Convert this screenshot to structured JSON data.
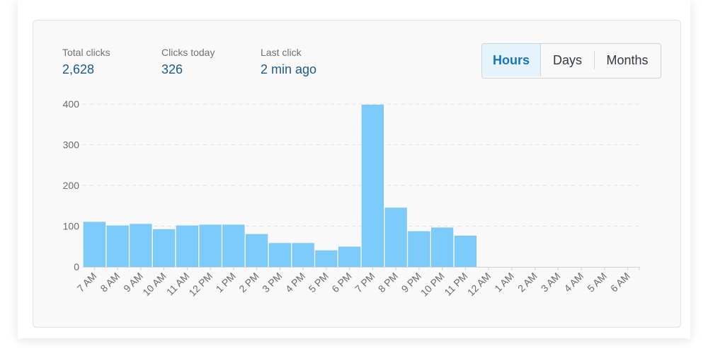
{
  "stats": {
    "total_clicks_label": "Total clicks",
    "total_clicks_value": "2,628",
    "clicks_today_label": "Clicks today",
    "clicks_today_value": "326",
    "last_click_label": "Last click",
    "last_click_value": "2 min ago"
  },
  "range": {
    "hours_label": "Hours",
    "days_label": "Days",
    "months_label": "Months",
    "selected": "Hours"
  },
  "colors": {
    "bar_fill": "#7dcbfb",
    "bar_stroke": "#6bbef2",
    "value_text": "#1a5a8f",
    "active_button_text": "#1474bd",
    "active_button_bg": "#e5f3fc"
  },
  "chart_data": {
    "type": "bar",
    "categories": [
      "7 AM",
      "8 AM",
      "9 AM",
      "10 AM",
      "11 AM",
      "12 PM",
      "1 PM",
      "2 PM",
      "3 PM",
      "4 PM",
      "5 PM",
      "6 PM",
      "7 PM",
      "8 PM",
      "9 PM",
      "10 PM",
      "11 PM",
      "12 AM",
      "1 AM",
      "2 AM",
      "3 AM",
      "4 AM",
      "5 AM",
      "6 AM"
    ],
    "values": [
      110,
      101,
      105,
      92,
      101,
      103,
      103,
      80,
      58,
      58,
      40,
      49,
      398,
      145,
      87,
      96,
      76,
      0,
      0,
      0,
      0,
      0,
      0,
      0
    ],
    "title": "",
    "xlabel": "",
    "ylabel": "",
    "ylim": [
      0,
      400
    ],
    "yticks": [
      0,
      100,
      200,
      300,
      400
    ],
    "grid": true
  }
}
